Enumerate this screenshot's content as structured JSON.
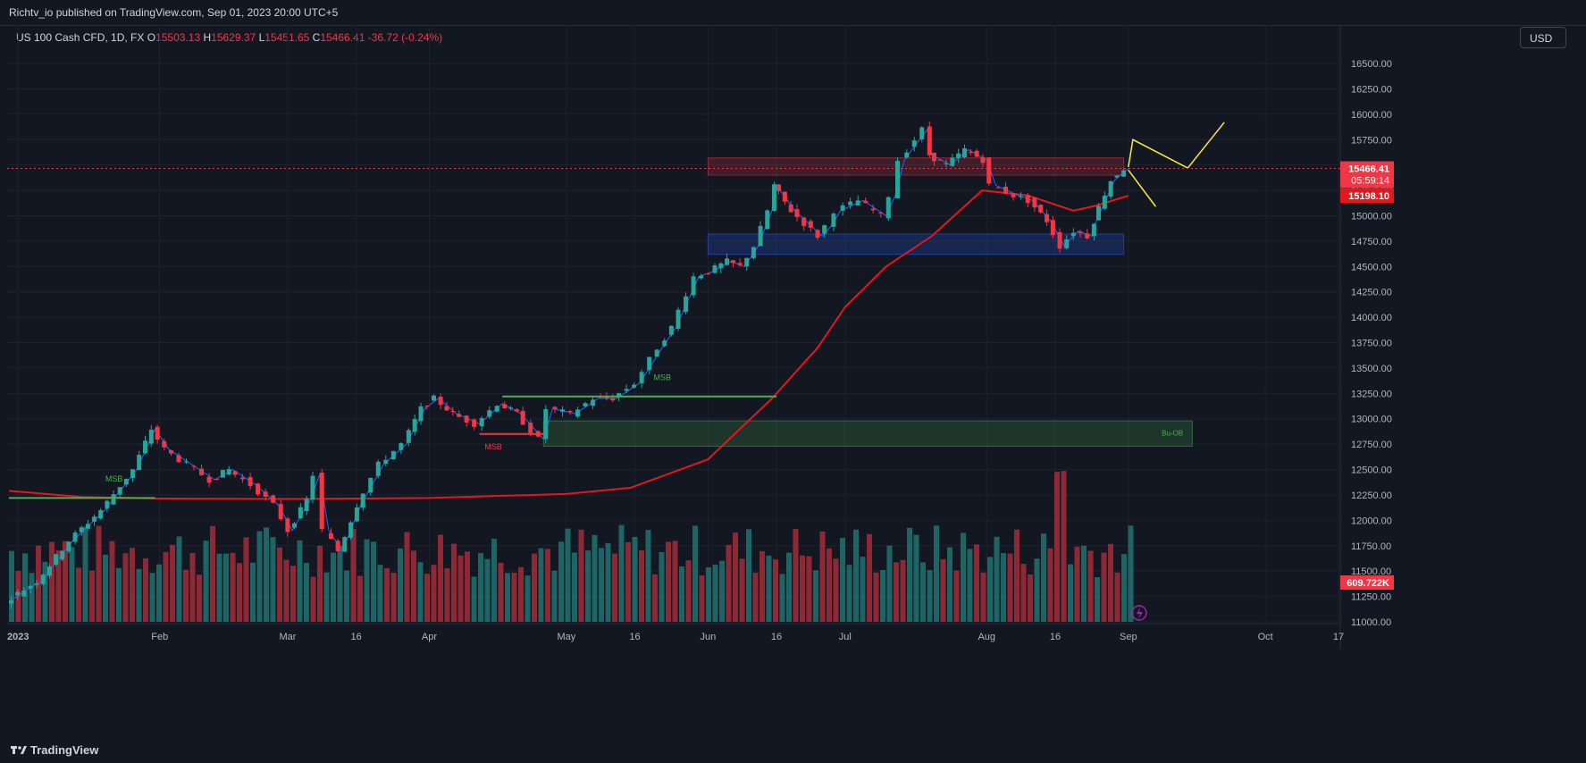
{
  "header": {
    "publisher_text": "Richtv_io published on TradingView.com, Sep 01, 2023 20:00 UTC+5"
  },
  "legend": {
    "symbol": "US 100 Cash CFD, 1D, FX",
    "open_label": "O",
    "open": "15503.13",
    "high_label": "H",
    "high": "15629.37",
    "low_label": "L",
    "low": "15451.65",
    "close_label": "C",
    "close": "15466.41",
    "change": "-36.72 (-0.24%)"
  },
  "currency_button": "USD",
  "footer": {
    "brand": "TradingView"
  },
  "colors": {
    "background": "#131722",
    "up": "#26a69a",
    "down": "#f23645",
    "ma": "#e5161c",
    "trend_line": "#2962ff",
    "projection": "#ffeb3b",
    "msb": "#4caf50"
  },
  "chart_data": {
    "type": "candlestick",
    "price_axis": {
      "ticks": [
        "16500.00",
        "16250.00",
        "16000.00",
        "15750.00",
        "15500.00",
        "15250.00",
        "15000.00",
        "14750.00",
        "14500.00",
        "14250.00",
        "14000.00",
        "13750.00",
        "13500.00",
        "13250.00",
        "13000.00",
        "12750.00",
        "12500.00",
        "12250.00",
        "12000.00",
        "11750.00",
        "11500.00",
        "11250.00",
        "11000.00"
      ],
      "range": [
        11000,
        16650
      ]
    },
    "time_axis": {
      "labels": [
        "2023",
        "Feb",
        "Mar",
        "16",
        "Apr",
        "May",
        "16",
        "Jun",
        "16",
        "Jul",
        "Aug",
        "16",
        "Sep",
        "Oct",
        "17"
      ]
    },
    "price_labels": {
      "last_price": "15466.41",
      "countdown": "05:59:14",
      "moving_average": "15198.10",
      "volume": "609.722K"
    },
    "ohlc_path": [
      [
        "Dec 30",
        11200
      ],
      [
        "Jan 6",
        11400
      ],
      [
        "Jan 13",
        11800
      ],
      [
        "Jan 20",
        12100
      ],
      [
        "Jan 27",
        12500
      ],
      [
        "Jan 31",
        12900
      ],
      [
        "Feb 3",
        12700
      ],
      [
        "Feb 8",
        12550
      ],
      [
        "Feb 13",
        12400
      ],
      [
        "Feb 17",
        12500
      ],
      [
        "Feb 22",
        12350
      ],
      [
        "Feb 27",
        12150
      ],
      [
        "Mar 2",
        11900
      ],
      [
        "Mar 6",
        12200
      ],
      [
        "Mar 8",
        12450
      ],
      [
        "Mar 10",
        11900
      ],
      [
        "Mar 13",
        11700
      ],
      [
        "Mar 17",
        12150
      ],
      [
        "Mar 22",
        12550
      ],
      [
        "Mar 27",
        12750
      ],
      [
        "Mar 31",
        13100
      ],
      [
        "Apr 3",
        13200
      ],
      [
        "Apr 7",
        13050
      ],
      [
        "Apr 12",
        12950
      ],
      [
        "Apr 17",
        13150
      ],
      [
        "Apr 21",
        13050
      ],
      [
        "Apr 26",
        12800
      ],
      [
        "Apr 28",
        13100
      ],
      [
        "May 3",
        13050
      ],
      [
        "May 8",
        13200
      ],
      [
        "May 12",
        13200
      ],
      [
        "May 17",
        13350
      ],
      [
        "May 22",
        13700
      ],
      [
        "May 25",
        13900
      ],
      [
        "May 30",
        14400
      ],
      [
        "Jun 2",
        14450
      ],
      [
        "Jun 6",
        14550
      ],
      [
        "Jun 9",
        14500
      ],
      [
        "Jun 12",
        14700
      ],
      [
        "Jun 15",
        15050
      ],
      [
        "Jun 16",
        15300
      ],
      [
        "Jun 20",
        15050
      ],
      [
        "Jun 26",
        14800
      ],
      [
        "Jun 28",
        14900
      ],
      [
        "Jun 30",
        15050
      ],
      [
        "Jul 5",
        15150
      ],
      [
        "Jul 10",
        15000
      ],
      [
        "Jul 12",
        15200
      ],
      [
        "Jul 14",
        15550
      ],
      [
        "Jul 19",
        15850
      ],
      [
        "Jul 20",
        15600
      ],
      [
        "Jul 24",
        15500
      ],
      [
        "Jul 28",
        15650
      ],
      [
        "Aug 1",
        15550
      ],
      [
        "Aug 3",
        15300
      ],
      [
        "Aug 8",
        15200
      ],
      [
        "Aug 11",
        15150
      ],
      [
        "Aug 15",
        14950
      ],
      [
        "Aug 18",
        14700
      ],
      [
        "Aug 21",
        14850
      ],
      [
        "Aug 24",
        14800
      ],
      [
        "Aug 25",
        14950
      ],
      [
        "Aug 29",
        15350
      ],
      [
        "Sep 1",
        15466
      ]
    ],
    "moving_average_slow": [
      [
        "Dec 30",
        12290
      ],
      [
        "Jan 15",
        12230
      ],
      [
        "Feb 1",
        12215
      ],
      [
        "Mar 1",
        12210
      ],
      [
        "Apr 1",
        12220
      ],
      [
        "May 1",
        12260
      ],
      [
        "May 15",
        12320
      ],
      [
        "Jun 1",
        12600
      ],
      [
        "Jun 15",
        13200
      ],
      [
        "Jun 25",
        13700
      ],
      [
        "Jul 1",
        14100
      ],
      [
        "Jul 10",
        14500
      ],
      [
        "Jul 20",
        14800
      ],
      [
        "Jul 31",
        15250
      ],
      [
        "Aug 10",
        15200
      ],
      [
        "Aug 20",
        15050
      ],
      [
        "Aug 25",
        15100
      ],
      [
        "Sep 1",
        15198
      ]
    ],
    "annotations": {
      "msb_labels": [
        "MSB",
        "MSB",
        "MSB"
      ],
      "ob_label": "Bu-OB",
      "zones": [
        {
          "name": "supply-zone",
          "price_top": 15570,
          "price_bottom": 15400,
          "color": "#f23645"
        },
        {
          "name": "demand-zone",
          "price_top": 14820,
          "price_bottom": 14620,
          "color": "#2962ff"
        },
        {
          "name": "bullish-order-block",
          "price_top": 12980,
          "price_bottom": 12730,
          "color": "#4caf50"
        }
      ]
    }
  }
}
